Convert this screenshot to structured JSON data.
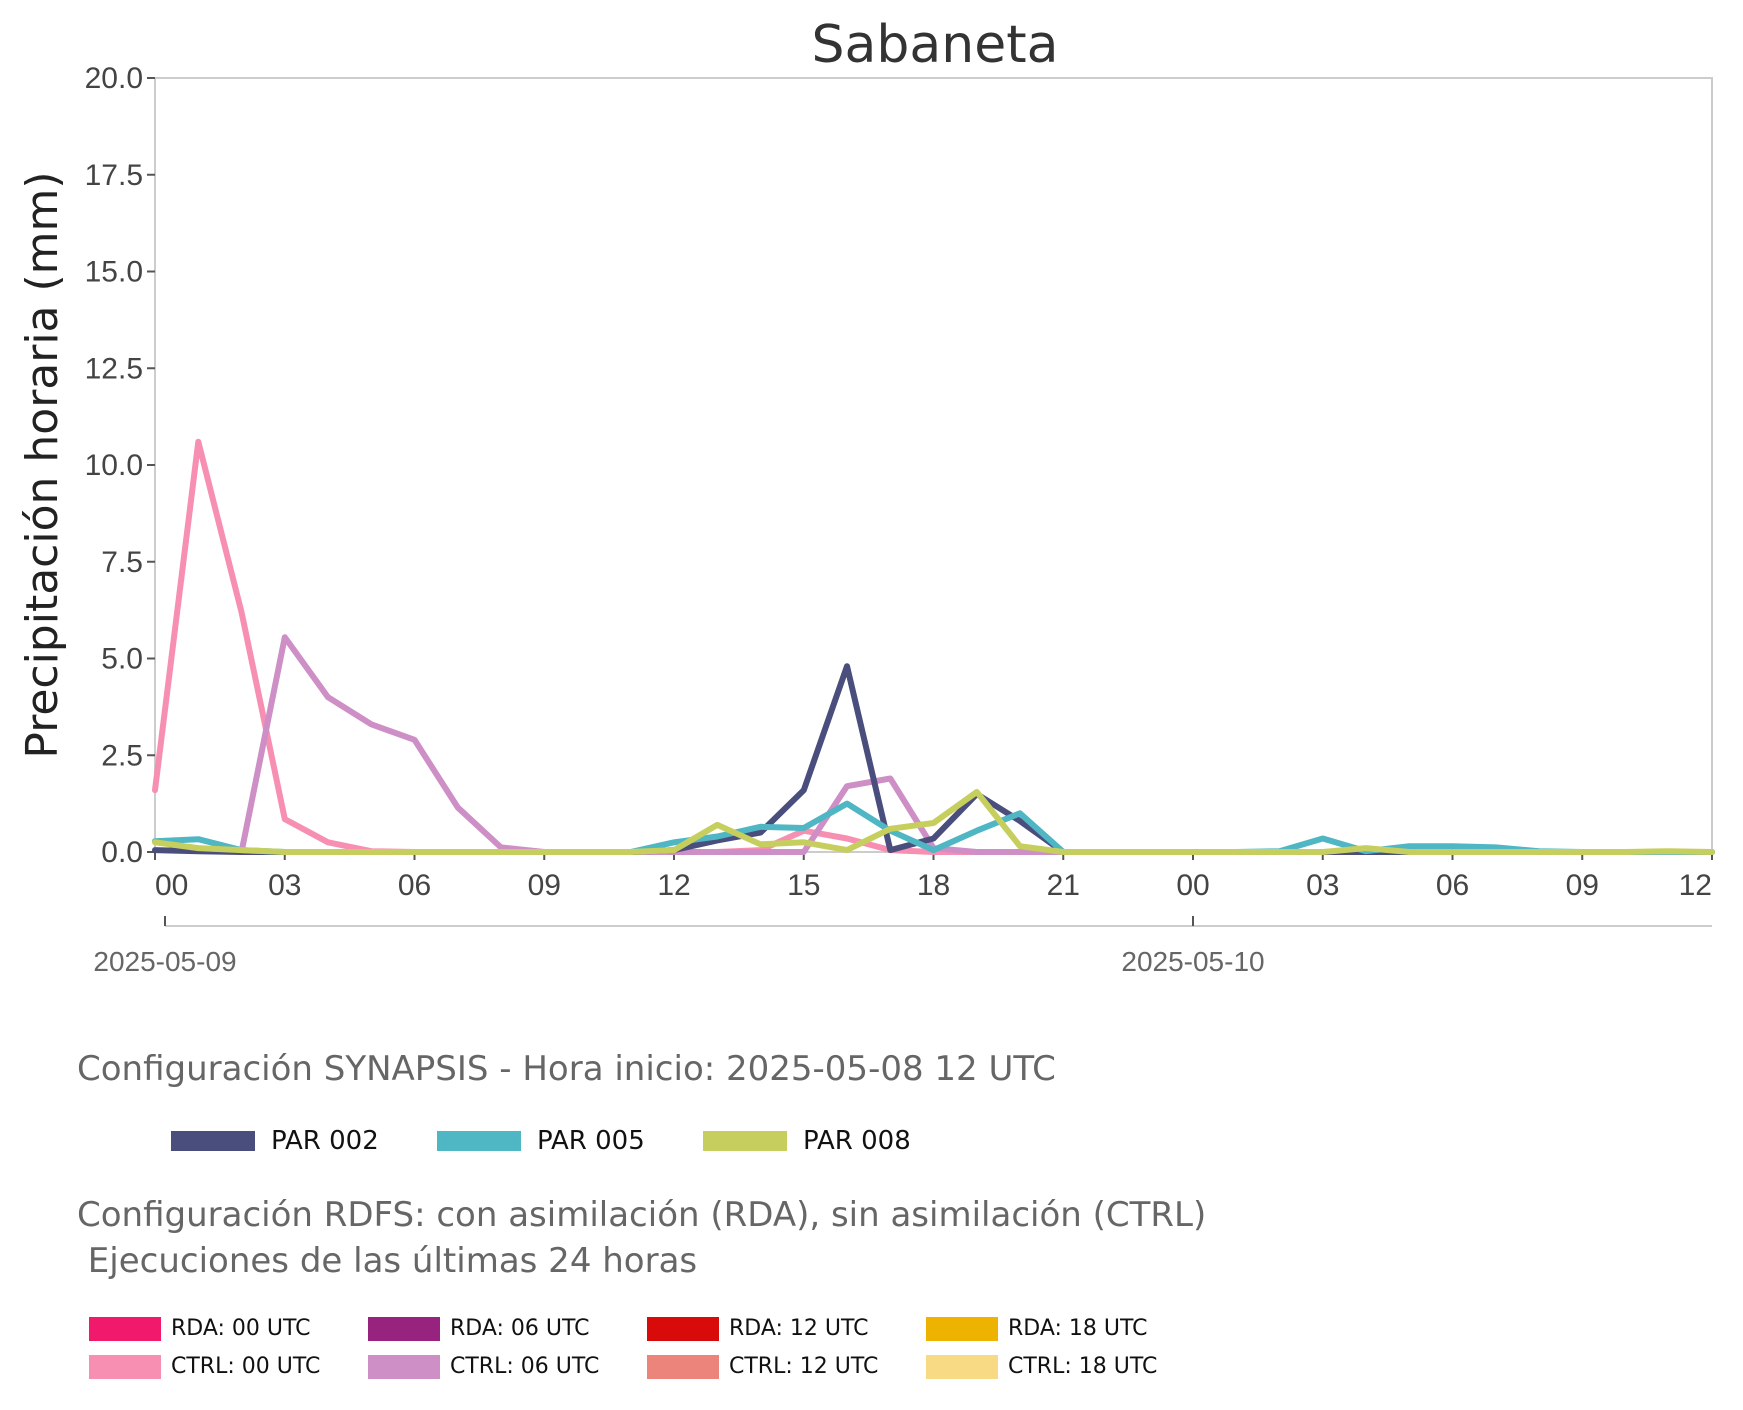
{
  "chart_data": {
    "type": "line",
    "title": "Sabaneta",
    "xlabel": "",
    "ylabel": "Precipitación horaria (mm)",
    "ylim": [
      0,
      20
    ],
    "yticks": [
      "0.0",
      "2.5",
      "5.0",
      "7.5",
      "10.0",
      "12.5",
      "15.0",
      "17.5",
      "20.0"
    ],
    "xlim": [
      "2025-05-09 00",
      "2025-05-10 12"
    ],
    "xtick_labels": [
      "00",
      "03",
      "06",
      "09",
      "12",
      "15",
      "18",
      "21",
      "00",
      "03",
      "06",
      "09",
      "12"
    ],
    "date_labels": [
      "2025-05-09",
      "2025-05-10"
    ],
    "grid": false,
    "x": [
      "2025-05-09 00",
      "2025-05-09 01",
      "2025-05-09 02",
      "2025-05-09 03",
      "2025-05-09 04",
      "2025-05-09 05",
      "2025-05-09 06",
      "2025-05-09 07",
      "2025-05-09 08",
      "2025-05-09 09",
      "2025-05-09 10",
      "2025-05-09 11",
      "2025-05-09 12",
      "2025-05-09 13",
      "2025-05-09 14",
      "2025-05-09 15",
      "2025-05-09 16",
      "2025-05-09 17",
      "2025-05-09 18",
      "2025-05-09 19",
      "2025-05-09 20",
      "2025-05-09 21",
      "2025-05-09 22",
      "2025-05-09 23",
      "2025-05-10 00",
      "2025-05-10 01",
      "2025-05-10 02",
      "2025-05-10 03",
      "2025-05-10 04",
      "2025-05-10 05",
      "2025-05-10 06",
      "2025-05-10 07",
      "2025-05-10 08",
      "2025-05-10 09",
      "2025-05-10 10",
      "2025-05-10 11",
      "2025-05-10 12"
    ],
    "series": [
      {
        "name": "CTRL: 00 UTC",
        "color": "#f78fb3",
        "values": [
          1.6,
          10.6,
          6.2,
          0.85,
          0.25,
          0.02,
          0.0,
          0.0,
          0.0,
          0.0,
          0.0,
          0.0,
          0.0,
          0.0,
          0.05,
          0.55,
          0.35,
          0.05,
          0.0,
          0.0,
          0.0,
          0.0,
          0.0,
          0.0,
          0.0,
          0.0,
          0.0,
          0.0,
          0.0,
          null,
          null,
          null,
          null,
          null,
          null,
          null,
          null
        ]
      },
      {
        "name": "CTRL: 06 UTC",
        "color": "#cd8fc5",
        "values": [
          null,
          null,
          0.0,
          5.55,
          4.0,
          3.3,
          2.9,
          1.15,
          0.12,
          0.0,
          0.0,
          0.0,
          0.0,
          0.0,
          0.0,
          0.0,
          1.7,
          1.9,
          0.1,
          0.0,
          0.0,
          0.0,
          0.0,
          0.0,
          0.0,
          0.0,
          0.0,
          0.0,
          0.0,
          0.0,
          0.0,
          0.0,
          0.0,
          0.0,
          0.0,
          0.0,
          0.0
        ]
      },
      {
        "name": "PAR 002",
        "color": "#4a4e7d",
        "values": [
          0.05,
          0.02,
          0.0,
          0.0,
          0.0,
          0.0,
          0.0,
          0.0,
          0.0,
          0.0,
          0.0,
          0.0,
          0.05,
          0.3,
          0.5,
          1.6,
          4.8,
          0.05,
          0.35,
          1.5,
          0.8,
          0.0,
          0.0,
          0.0,
          0.0,
          0.0,
          0.0,
          0.0,
          0.0,
          0.0,
          0.0,
          0.0,
          0.0,
          0.0,
          0.0,
          0.0,
          0.0
        ]
      },
      {
        "name": "PAR 005",
        "color": "#4fb6c4",
        "values": [
          0.28,
          0.33,
          0.05,
          0.0,
          0.0,
          0.0,
          0.0,
          0.0,
          0.0,
          0.0,
          0.0,
          0.0,
          0.25,
          0.4,
          0.65,
          0.62,
          1.25,
          0.55,
          0.05,
          0.55,
          1.0,
          0.0,
          0.0,
          0.0,
          0.0,
          0.0,
          0.02,
          0.35,
          0.02,
          0.15,
          0.15,
          0.12,
          0.02,
          0.0,
          0.0,
          0.0,
          0.0
        ]
      },
      {
        "name": "PAR 008",
        "color": "#c6cf5e",
        "values": [
          0.25,
          0.1,
          0.05,
          0.0,
          0.0,
          0.0,
          0.0,
          0.0,
          0.0,
          0.0,
          0.0,
          0.0,
          0.05,
          0.7,
          0.2,
          0.25,
          0.05,
          0.6,
          0.75,
          1.55,
          0.15,
          0.0,
          0.0,
          0.0,
          0.0,
          0.0,
          0.0,
          0.0,
          0.1,
          0.0,
          0.0,
          0.0,
          0.0,
          0.0,
          0.0,
          0.02,
          0.0
        ]
      }
    ]
  },
  "legend": {
    "synapsis_title": "Configuración SYNAPSIS - Hora inicio: 2025-05-08 12 UTC",
    "synapsis_items": [
      {
        "label": "PAR 002",
        "color": "#4a4e7d"
      },
      {
        "label": "PAR 005",
        "color": "#4fb6c4"
      },
      {
        "label": "PAR 008",
        "color": "#c6cf5e"
      }
    ],
    "rdfs_title": "Configuración RDFS: con asimilación (RDA), sin asimilación (CTRL)\n Ejecuciones de las últimas 24 horas",
    "rdfs_row1": [
      {
        "label": "RDA: 00 UTC",
        "color": "#f0196b"
      },
      {
        "label": "RDA: 06 UTC",
        "color": "#98237f"
      },
      {
        "label": "RDA: 12 UTC",
        "color": "#d80a0a"
      },
      {
        "label": "RDA: 18 UTC",
        "color": "#eeb200"
      }
    ],
    "rdfs_row2": [
      {
        "label": "CTRL: 00 UTC",
        "color": "#f78fb3"
      },
      {
        "label": "CTRL: 06 UTC",
        "color": "#cd8fc5"
      },
      {
        "label": "CTRL: 12 UTC",
        "color": "#ec847c"
      },
      {
        "label": "CTRL: 18 UTC",
        "color": "#f8d984"
      }
    ]
  }
}
